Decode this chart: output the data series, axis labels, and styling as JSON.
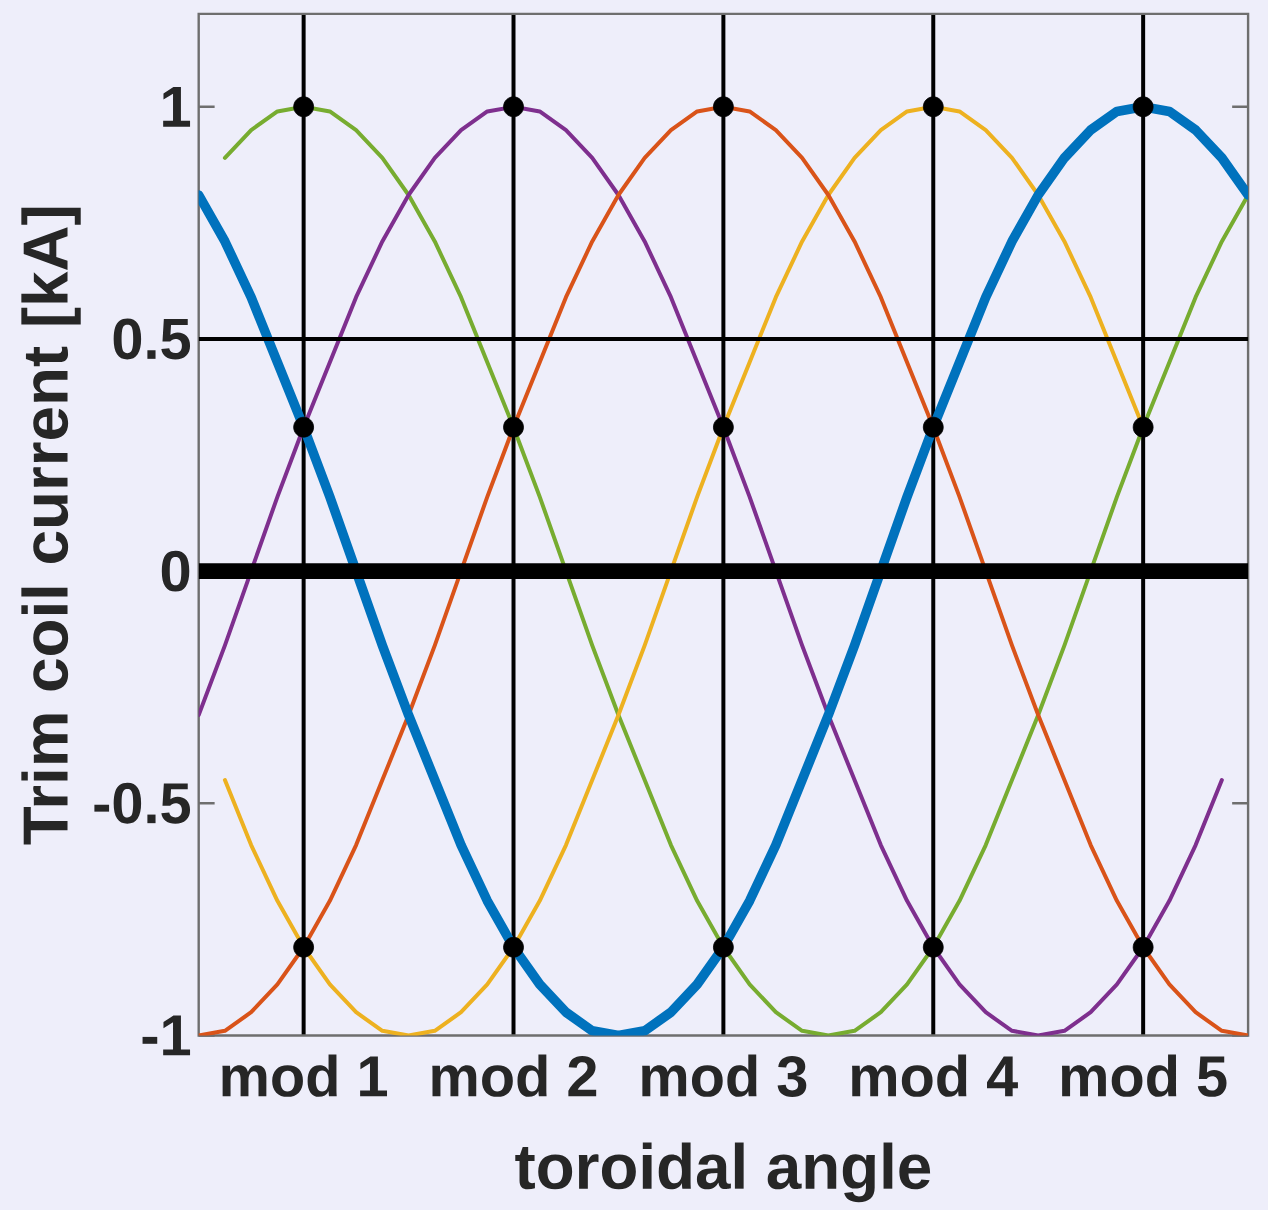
{
  "chart_data": {
    "type": "line",
    "xlabel": "toroidal angle",
    "ylabel": "Trim coil current [kA]",
    "categories": [
      null,
      null,
      null,
      null,
      "mod 1",
      null,
      null,
      null,
      null,
      null,
      null,
      null,
      "mod 2",
      null,
      null,
      null,
      null,
      null,
      null,
      null,
      "mod 3",
      null,
      null,
      null,
      null,
      null,
      null,
      null,
      "mod 4",
      null,
      null,
      null,
      null,
      null,
      null,
      null,
      "mod 5",
      null,
      null,
      null,
      null
    ],
    "ylim": [
      -1,
      1.2
    ],
    "yticks": [
      -1,
      -0.5,
      0,
      0.5,
      1
    ],
    "grid": "x",
    "series": [
      {
        "color": "#0072bd",
        "values": [
          0.81,
          0.71,
          0.59,
          0.45,
          0.31,
          0.16,
          0,
          -0.16,
          -0.31,
          -0.45,
          -0.59,
          -0.71,
          -0.81,
          -0.89,
          -0.95,
          -0.99,
          -1,
          -0.99,
          -0.95,
          -0.89,
          -0.81,
          -0.71,
          -0.59,
          -0.45,
          -0.31,
          -0.16,
          0,
          0.16,
          0.31,
          0.45,
          0.59,
          0.71,
          0.81,
          0.89,
          0.95,
          0.99,
          1,
          0.99,
          0.95,
          0.89,
          0.81
        ]
      },
      {
        "color": "#d95319",
        "values": [
          -1,
          -0.99,
          -0.95,
          -0.89,
          -0.81,
          -0.71,
          -0.59,
          -0.45,
          -0.31,
          -0.16,
          0,
          0.16,
          0.31,
          0.45,
          0.59,
          0.71,
          0.81,
          0.89,
          0.95,
          0.99,
          1,
          0.99,
          0.95,
          0.89,
          0.81,
          0.71,
          0.59,
          0.45,
          0.31,
          0.16,
          0,
          -0.16,
          -0.31,
          -0.45,
          -0.59,
          -0.71,
          -0.81,
          -0.89,
          -0.95,
          -0.99,
          -1
        ]
      },
      {
        "color": "#edb120",
        "values": [
          null,
          -0.45,
          -0.59,
          -0.71,
          -0.81,
          -0.89,
          -0.95,
          -0.99,
          -1,
          -0.99,
          -0.95,
          -0.89,
          -0.81,
          -0.71,
          -0.59,
          -0.45,
          -0.31,
          -0.16,
          0,
          0.16,
          0.31,
          0.45,
          0.59,
          0.71,
          0.81,
          0.89,
          0.95,
          0.99,
          1,
          0.99,
          0.95,
          0.89,
          0.81,
          0.71,
          0.59,
          0.45,
          0.31,
          null,
          null,
          null,
          null
        ]
      },
      {
        "color": "#7e2f8e",
        "values": [
          -0.31,
          -0.16,
          0,
          0.16,
          0.31,
          0.45,
          0.59,
          0.71,
          0.81,
          0.89,
          0.95,
          0.99,
          1,
          0.99,
          0.95,
          0.89,
          0.81,
          0.71,
          0.59,
          0.45,
          0.31,
          0.16,
          0,
          -0.16,
          -0.31,
          -0.45,
          -0.59,
          -0.71,
          -0.81,
          -0.89,
          -0.95,
          -0.99,
          -1,
          -0.99,
          -0.95,
          -0.89,
          -0.81,
          -0.71,
          -0.59,
          -0.45,
          null
        ]
      },
      {
        "color": "#77ac30",
        "values": [
          null,
          0.89,
          0.95,
          0.99,
          1,
          0.99,
          0.95,
          0.89,
          0.81,
          0.71,
          0.59,
          0.45,
          0.31,
          0.16,
          0,
          -0.16,
          -0.31,
          -0.45,
          -0.59,
          -0.71,
          -0.81,
          -0.89,
          -0.95,
          -0.99,
          -1,
          -0.99,
          -0.95,
          -0.89,
          -0.81,
          -0.71,
          -0.59,
          -0.45,
          -0.31,
          -0.16,
          0,
          0.16,
          0.31,
          0.45,
          0.59,
          0.71,
          0.81
        ]
      },
      {
        "type": "scatter",
        "marker": "circle",
        "color": "#000000",
        "values": [
          null,
          null,
          null,
          null,
          1,
          null,
          null,
          null,
          null,
          null,
          null,
          null,
          1,
          null,
          null,
          null,
          null,
          null,
          null,
          null,
          1,
          null,
          null,
          null,
          null,
          null,
          null,
          null,
          1,
          null,
          null,
          null,
          null,
          null,
          null,
          null,
          1,
          null,
          null,
          null,
          null
        ]
      },
      {
        "type": "scatter",
        "marker": "circle",
        "color": "#000000",
        "values": [
          null,
          null,
          null,
          null,
          0.31,
          null,
          null,
          null,
          null,
          null,
          null,
          null,
          0.31,
          null,
          null,
          null,
          null,
          null,
          null,
          null,
          0.31,
          null,
          null,
          null,
          null,
          null,
          null,
          null,
          0.31,
          null,
          null,
          null,
          null,
          null,
          null,
          null,
          0.31,
          null,
          null,
          null,
          null
        ]
      },
      {
        "type": "scatter",
        "marker": "circle",
        "color": "#000000",
        "values": [
          null,
          null,
          null,
          null,
          -0.81,
          null,
          null,
          null,
          null,
          null,
          null,
          null,
          -0.81,
          null,
          null,
          null,
          null,
          null,
          null,
          null,
          -0.81,
          null,
          null,
          null,
          null,
          null,
          null,
          null,
          -0.81,
          null,
          null,
          null,
          null,
          null,
          null,
          null,
          -0.81,
          null,
          null,
          null,
          null
        ]
      }
    ],
    "ref_lines": [
      {
        "axis": "y",
        "value": 0,
        "color": "#000000"
      },
      {
        "axis": "y",
        "value": 0.5,
        "color": "#000000"
      }
    ]
  }
}
